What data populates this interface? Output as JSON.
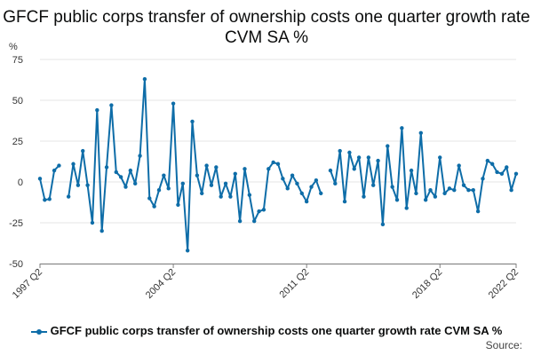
{
  "chart_data": {
    "type": "line",
    "title": "GFCF public corps transfer of ownership costs one quarter growth rate CVM SA %",
    "ylabel": "%",
    "xlabel": "",
    "ylim": [
      -50,
      75
    ],
    "yticks": [
      -50,
      -25,
      0,
      25,
      50,
      75
    ],
    "xtick_labels": [
      "1997 Q2",
      "2004 Q2",
      "2011 Q2",
      "2018 Q2",
      "2022 Q2"
    ],
    "grid": true,
    "legend_position": "bottom",
    "source_label": "Source:",
    "colors": {
      "series": "#0e6da8",
      "grid": "#e6e6e6",
      "axis": "#7f7f7f"
    },
    "series": [
      {
        "name": "GFCF public corps transfer of ownership costs one quarter growth rate CVM SA %",
        "x": [
          "1997 Q2",
          "1997 Q3",
          "1997 Q4",
          "1998 Q1",
          "1998 Q2",
          "1998 Q3",
          "1998 Q4",
          "1999 Q1",
          "1999 Q2",
          "1999 Q3",
          "1999 Q4",
          "2000 Q1",
          "2000 Q2",
          "2000 Q3",
          "2000 Q4",
          "2001 Q1",
          "2001 Q2",
          "2001 Q3",
          "2001 Q4",
          "2002 Q1",
          "2002 Q2",
          "2002 Q3",
          "2002 Q4",
          "2003 Q1",
          "2003 Q2",
          "2003 Q3",
          "2003 Q4",
          "2004 Q1",
          "2004 Q2",
          "2004 Q3",
          "2004 Q4",
          "2005 Q1",
          "2005 Q2",
          "2005 Q3",
          "2005 Q4",
          "2006 Q1",
          "2006 Q2",
          "2006 Q3",
          "2006 Q4",
          "2007 Q1",
          "2007 Q2",
          "2007 Q3",
          "2007 Q4",
          "2008 Q1",
          "2008 Q2",
          "2008 Q3",
          "2008 Q4",
          "2009 Q1",
          "2009 Q2",
          "2009 Q3",
          "2009 Q4",
          "2010 Q1",
          "2010 Q2",
          "2010 Q3",
          "2010 Q4",
          "2011 Q1",
          "2011 Q2",
          "2011 Q3",
          "2011 Q4",
          "2012 Q1",
          "2012 Q2",
          "2012 Q3",
          "2012 Q4",
          "2013 Q1",
          "2013 Q2",
          "2013 Q3",
          "2013 Q4",
          "2014 Q1",
          "2014 Q2",
          "2014 Q3",
          "2014 Q4",
          "2015 Q1",
          "2015 Q2",
          "2015 Q3",
          "2015 Q4",
          "2016 Q1",
          "2016 Q2",
          "2016 Q3",
          "2016 Q4",
          "2017 Q1",
          "2017 Q2",
          "2017 Q3",
          "2017 Q4",
          "2018 Q1",
          "2018 Q2",
          "2018 Q3",
          "2018 Q4",
          "2019 Q1",
          "2019 Q2",
          "2019 Q3",
          "2019 Q4",
          "2020 Q1",
          "2020 Q2",
          "2020 Q3",
          "2020 Q4",
          "2021 Q1",
          "2021 Q2",
          "2021 Q3",
          "2021 Q4",
          "2022 Q1",
          "2022 Q2"
        ],
        "values": [
          2,
          -11,
          -10.5,
          7,
          10,
          null,
          -9,
          11,
          -2,
          19,
          -2,
          -25,
          44,
          -30,
          9,
          47,
          6,
          3,
          -3,
          7,
          -1,
          16,
          63,
          -10,
          -15,
          -5,
          4,
          -4,
          48,
          -14,
          -1,
          -42,
          37,
          4,
          -7,
          10,
          -2,
          9,
          -9,
          -1,
          -9,
          5,
          -24,
          8,
          -8,
          -24,
          -18,
          -17,
          8,
          12,
          11,
          2,
          -4,
          4,
          -1,
          -7,
          -12,
          -3,
          1,
          -7,
          null,
          7,
          -1,
          19,
          -12,
          18,
          8,
          15,
          -9,
          15,
          -2,
          13,
          -26,
          22,
          -3,
          -11,
          33,
          -16,
          7,
          -7,
          30,
          -11,
          -5,
          -9,
          15,
          -7,
          -4,
          -5,
          10,
          -2,
          -5,
          -5,
          -18,
          2,
          13,
          11,
          6,
          5,
          9,
          -5,
          5
        ]
      }
    ]
  }
}
